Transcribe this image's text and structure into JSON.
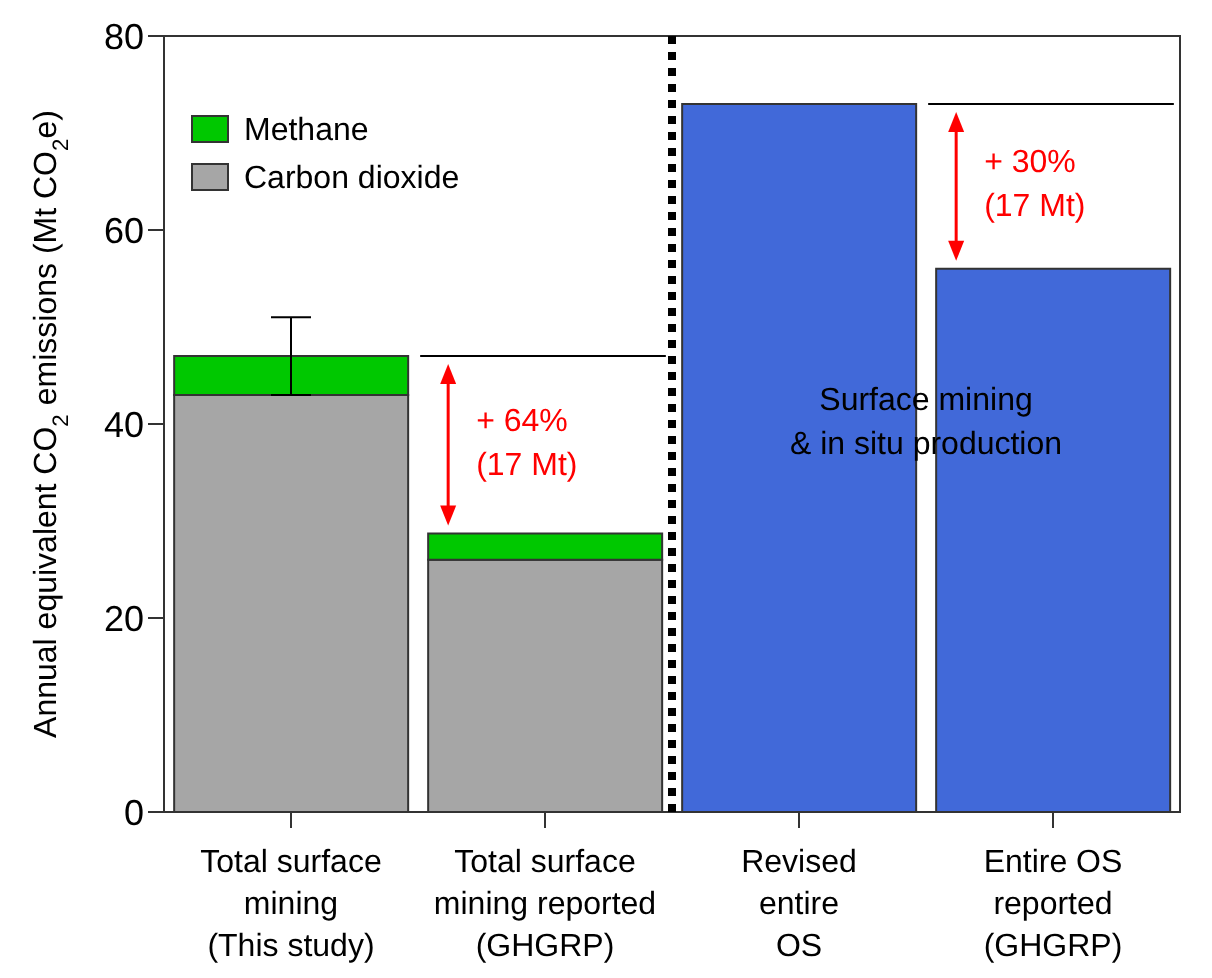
{
  "chart_data": {
    "type": "bar",
    "stacked": true,
    "ylabel": "Annual equivalent CO$_{2}$ emissions (Mt CO$_{2}$e)",
    "categories": [
      "Total surface\nmining\n(This study)",
      "Total surface\nmining reported\n(GHGRP)",
      "Revised\nentire\nOS",
      "Entire OS\nreported\n(GHGRP)"
    ],
    "series": [
      {
        "name": "Carbon dioxide",
        "color": "#a6a6a6",
        "values": [
          43,
          26,
          null,
          null
        ]
      },
      {
        "name": "Methane",
        "color": "#00c800",
        "values": [
          4,
          2.7,
          null,
          null
        ],
        "errors": [
          4,
          null,
          null,
          null
        ]
      },
      {
        "color": "#4169d9",
        "values": [
          null,
          null,
          73,
          56
        ]
      }
    ],
    "ylim": [
      0,
      80
    ],
    "yticks": [
      0,
      20,
      40,
      60,
      80
    ],
    "grid": false,
    "legend": "top left",
    "annotations": [
      "+ 64%\n(17 Mt)",
      "+ 30%\n(17 Mt)",
      "Surface mining\n& in situ production"
    ]
  }
}
